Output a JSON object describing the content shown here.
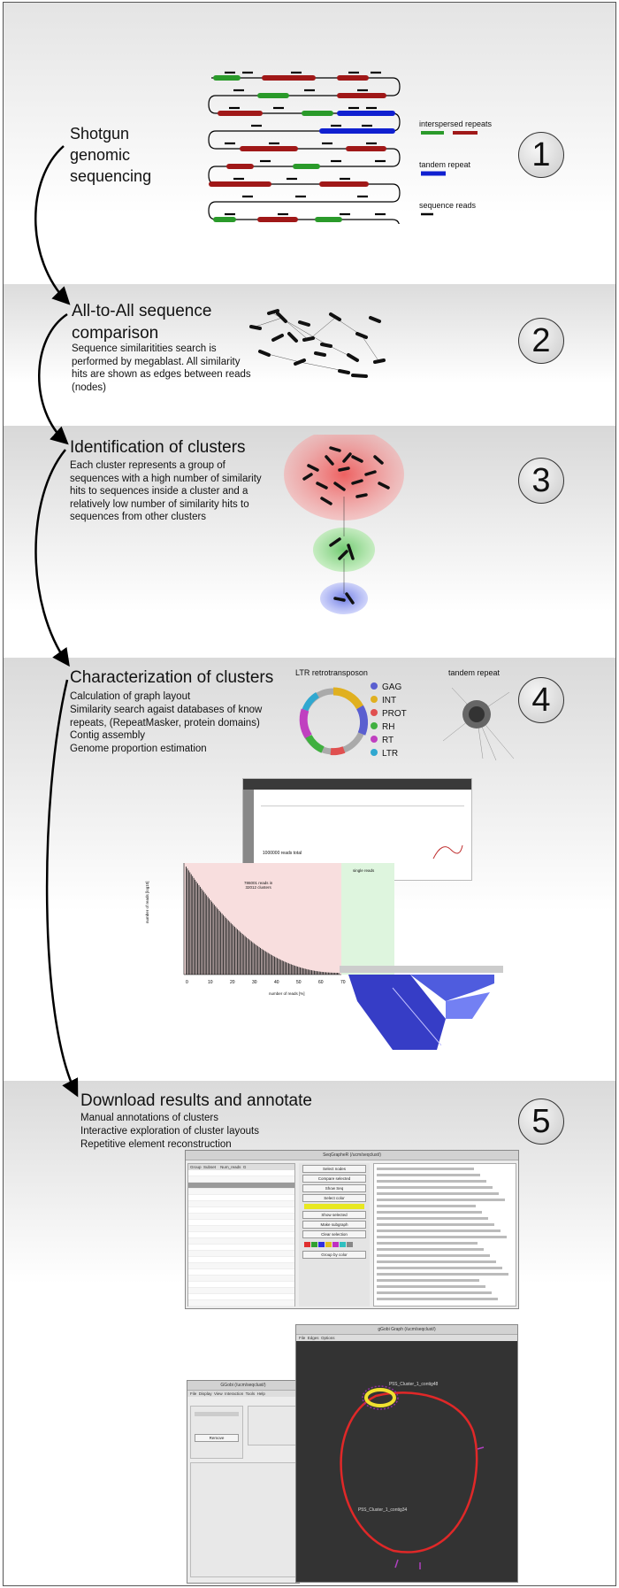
{
  "section1": {
    "number": "1",
    "title": "Shotgun\ngenomic\nsequencing",
    "legend": {
      "interspersed": "interspersed repeats",
      "tandem": "tandem repeat",
      "reads": "sequence reads"
    }
  },
  "section2": {
    "number": "2",
    "title": "All-to-All sequence\ncomparison",
    "description": "Sequence similaritities search is performed by megablast. All similarity hits are shown as edges between reads (nodes)"
  },
  "section3": {
    "number": "3",
    "title": "Identification of clusters",
    "description": "Each cluster represents a group of sequences with a high number of similarity hits to sequences inside a cluster and a relatively low number of similarity hits to sequences from other clusters"
  },
  "section4": {
    "number": "4",
    "title": "Characterization of clusters",
    "steps": [
      "Calculation of graph layout",
      "Similarity search agaist databases of know repeats, (RepeatMasker, protein domains)",
      "Contig assembly",
      "Genome proportion estimation"
    ],
    "ltr_label": "LTR retrotransposon",
    "tandem_label": "tandem repeat",
    "domains": [
      {
        "name": "GAG",
        "color": "#5a5fd0"
      },
      {
        "name": "INT",
        "color": "#e0b020"
      },
      {
        "name": "PROT",
        "color": "#e05050"
      },
      {
        "name": "RH",
        "color": "#40b040"
      },
      {
        "name": "RT",
        "color": "#c040c0"
      },
      {
        "name": "LTR",
        "color": "#30a8d0"
      }
    ],
    "bar_chart": {
      "title": "1000000 reads total",
      "subtitle": "786001 reads in\n32012 clusters",
      "single_label": "single reads",
      "xlabel": "number of reads [%]",
      "ylabel": "number of reads [log10]",
      "xticks": [
        "0",
        "10",
        "20",
        "30",
        "40",
        "50",
        "60",
        "70"
      ]
    }
  },
  "section5": {
    "number": "5",
    "title": "Download results and annotate",
    "steps": [
      "Manual annotations of clusters",
      "Interactive exploration of cluster layouts",
      "Repetitive element reconstruction"
    ],
    "seqclust_window_title": "SeqGrapheR (/ucm/seqclust/)",
    "graph_window_title": "gGobi Graph (/ucm/seqclust/)",
    "ggobi_window_title": "GGobi (/ucm/seqclust/)",
    "buttons": [
      "Select nodes",
      "Compare selected",
      "Show Seq",
      "Select color",
      "Show selected",
      "Make subgraph",
      "Clear selection",
      "Show all",
      "Remove",
      "Group by color"
    ],
    "table_headers": [
      "Group",
      "Subset",
      "Num_reads",
      "G"
    ],
    "graph_labels": {
      "top": "P5S_Cluster_1_contig48",
      "bottom": "P5S_Cluster_1_contig34"
    }
  },
  "colors": {
    "interspersed_green": "#2a9a2a",
    "interspersed_red": "#a01818",
    "tandem_blue": "#1020d0",
    "cluster_red": "#f04040",
    "cluster_green": "#50c050",
    "cluster_blue": "#5060e0"
  }
}
